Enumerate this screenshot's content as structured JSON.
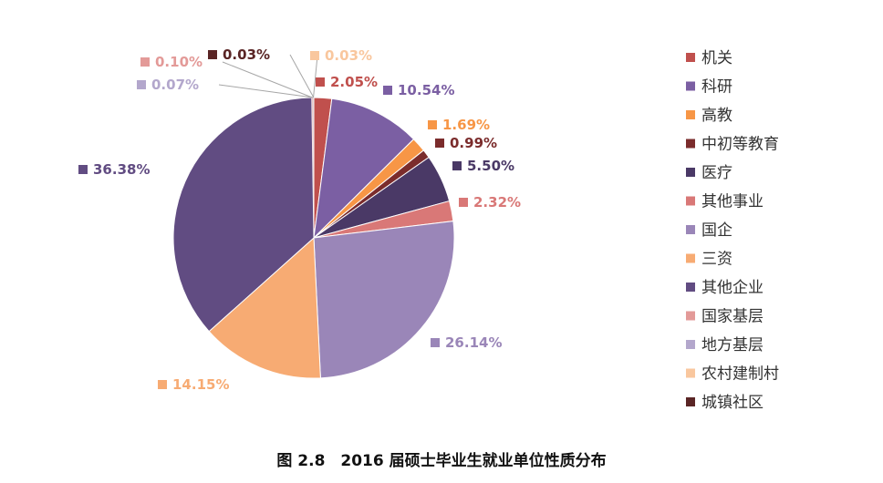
{
  "caption": "图 2.8　2016 届硕士毕业生就业单位性质分布",
  "chart_data": {
    "type": "pie",
    "title": "",
    "legend_position": "right",
    "series": [
      {
        "name": "机关",
        "value": 2.05,
        "label": "2.05%",
        "color": "#c0504d"
      },
      {
        "name": "科研",
        "value": 10.54,
        "label": "10.54%",
        "color": "#7b5fa3"
      },
      {
        "name": "高教",
        "value": 1.69,
        "label": "1.69%",
        "color": "#f79646"
      },
      {
        "name": "中初等教育",
        "value": 0.99,
        "label": "0.99%",
        "color": "#7b2c2c"
      },
      {
        "name": "医疗",
        "value": 5.5,
        "label": "5.50%",
        "color": "#4a3966"
      },
      {
        "name": "其他事业",
        "value": 2.32,
        "label": "2.32%",
        "color": "#d97877"
      },
      {
        "name": "国企",
        "value": 26.14,
        "label": "26.14%",
        "color": "#9a86b8"
      },
      {
        "name": "三资",
        "value": 14.15,
        "label": "14.15%",
        "color": "#f7ab73"
      },
      {
        "name": "其他企业",
        "value": 36.38,
        "label": "36.38%",
        "color": "#614c82"
      },
      {
        "name": "国家基层",
        "value": 0.1,
        "label": "0.10%",
        "color": "#e39a98"
      },
      {
        "name": "地方基层",
        "value": 0.07,
        "label": "0.07%",
        "color": "#b3a7cc"
      },
      {
        "name": "农村建制村",
        "value": 0.03,
        "label": "0.03%",
        "color": "#f9c79e"
      },
      {
        "name": "城镇社区",
        "value": 0.03,
        "label": "0.03%",
        "color": "#5a2525"
      }
    ]
  }
}
